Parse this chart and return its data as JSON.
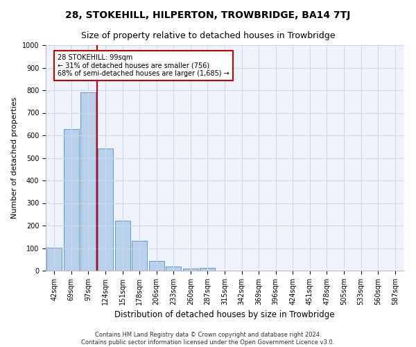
{
  "title": "28, STOKEHILL, HILPERTON, TROWBRIDGE, BA14 7TJ",
  "subtitle": "Size of property relative to detached houses in Trowbridge",
  "xlabel": "Distribution of detached houses by size in Trowbridge",
  "ylabel": "Number of detached properties",
  "bar_labels": [
    "42sqm",
    "69sqm",
    "97sqm",
    "124sqm",
    "151sqm",
    "178sqm",
    "206sqm",
    "233sqm",
    "260sqm",
    "287sqm",
    "315sqm",
    "342sqm",
    "369sqm",
    "396sqm",
    "424sqm",
    "451sqm",
    "478sqm",
    "505sqm",
    "533sqm",
    "560sqm",
    "587sqm"
  ],
  "bar_values": [
    103,
    628,
    792,
    541,
    222,
    133,
    42,
    17,
    10,
    11,
    0,
    0,
    0,
    0,
    0,
    0,
    0,
    0,
    0,
    0,
    0
  ],
  "bar_color": "#b8d0ea",
  "bar_edge_color": "#6699cc",
  "vline_x": 2.5,
  "vline_color": "#cc0000",
  "annotation_line1": "28 STOKEHILL: 99sqm",
  "annotation_line2": "← 31% of detached houses are smaller (756)",
  "annotation_line3": "68% of semi-detached houses are larger (1,685) →",
  "annotation_box_edge": "#cc0000",
  "ylim": [
    0,
    1000
  ],
  "yticks": [
    0,
    100,
    200,
    300,
    400,
    500,
    600,
    700,
    800,
    900,
    1000
  ],
  "grid_color": "#d0d8e8",
  "background_color": "#eef2fa",
  "footer_line1": "Contains HM Land Registry data © Crown copyright and database right 2024.",
  "footer_line2": "Contains public sector information licensed under the Open Government Licence v3.0.",
  "title_fontsize": 10,
  "subtitle_fontsize": 9,
  "ylabel_fontsize": 8,
  "xlabel_fontsize": 8.5,
  "tick_fontsize": 7,
  "annotation_fontsize": 7,
  "footer_fontsize": 6
}
